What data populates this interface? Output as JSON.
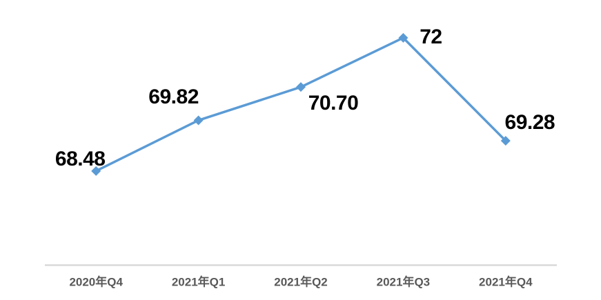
{
  "chart_data": {
    "type": "line",
    "title": "",
    "xlabel": "",
    "ylabel": "",
    "categories": [
      "2020年Q4",
      "2021年Q1",
      "2021年Q2",
      "2021年Q3",
      "2021年Q4"
    ],
    "values": [
      68.48,
      69.82,
      70.7,
      72,
      69.28
    ],
    "data_labels": [
      "68.48",
      "69.82",
      "70.70",
      "72",
      "69.28"
    ],
    "ylim": [
      66,
      73
    ],
    "grid": false,
    "legend": false,
    "marker_shape": "diamond",
    "colors": {
      "line": "#5B9BD5",
      "marker": "#5B9BD5",
      "data_label": "#000000",
      "tick_label": "#595959",
      "axis_line": "#D9D9D9",
      "background": "#FFFFFF"
    }
  }
}
